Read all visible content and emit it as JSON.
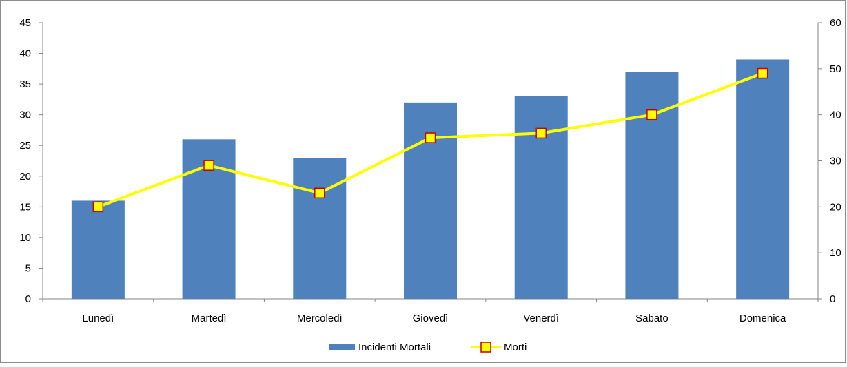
{
  "chart_data": {
    "type": "bar",
    "categories": [
      "Lunedì",
      "Martedì",
      "Mercoledì",
      "Giovedì",
      "Venerdì",
      "Sabato",
      "Domenica"
    ],
    "series": [
      {
        "name": "Incidenti Mortali",
        "type": "bar",
        "axis": "left",
        "color": "#4f81bd",
        "values": [
          16,
          26,
          23,
          32,
          33,
          37,
          39
        ]
      },
      {
        "name": "Morti",
        "type": "line",
        "axis": "right",
        "color": "#ffff00",
        "marker_fill": "#ffff00",
        "marker_stroke": "#c00000",
        "values": [
          20,
          29,
          23,
          35,
          36,
          40,
          49
        ]
      }
    ],
    "y_left": {
      "min": 0,
      "max": 45,
      "step": 5,
      "ticks": [
        "0",
        "5",
        "10",
        "15",
        "20",
        "25",
        "30",
        "35",
        "40",
        "45"
      ]
    },
    "y_right": {
      "min": 0,
      "max": 60,
      "step": 10,
      "ticks": [
        "0",
        "10",
        "20",
        "30",
        "40",
        "50",
        "60"
      ]
    },
    "grid": false,
    "legend_position": "bottom"
  }
}
